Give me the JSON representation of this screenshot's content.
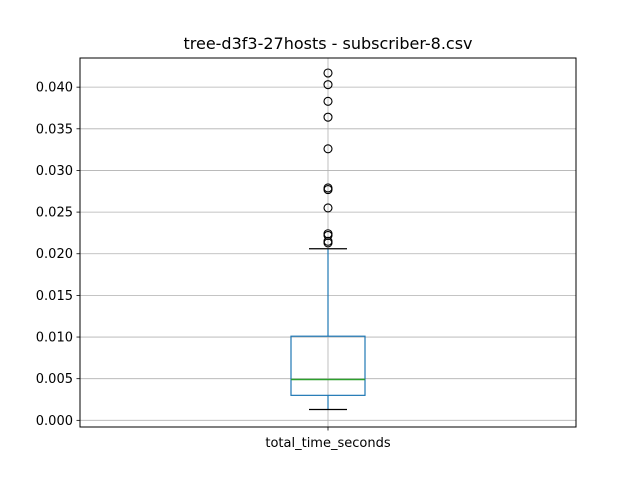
{
  "chart_data": {
    "type": "box",
    "title": "tree-d3f3-27hosts - subscriber-8.csv",
    "categories": [
      "total_time_seconds"
    ],
    "ylim": [
      -0.0008,
      0.0435
    ],
    "yticks": [
      0.0,
      0.005,
      0.01,
      0.015,
      0.02,
      0.025,
      0.03,
      0.035,
      0.04
    ],
    "ytick_labels": [
      "0.000",
      "0.005",
      "0.010",
      "0.015",
      "0.020",
      "0.025",
      "0.030",
      "0.035",
      "0.040"
    ],
    "grid": true,
    "box": {
      "whisker_low": 0.0013,
      "q1": 0.003,
      "median": 0.0049,
      "q3": 0.0101,
      "whisker_high": 0.0206
    },
    "outliers": [
      0.0213,
      0.0215,
      0.0222,
      0.0224,
      0.0255,
      0.0277,
      0.0279,
      0.0326,
      0.0364,
      0.0383,
      0.0403,
      0.0417
    ],
    "colors": {
      "box": "#1f77b4",
      "median": "#2ca02c",
      "whisker": "#1f77b4",
      "cap": "#000000",
      "grid": "#b0b0b0",
      "axes": "#000000"
    }
  }
}
